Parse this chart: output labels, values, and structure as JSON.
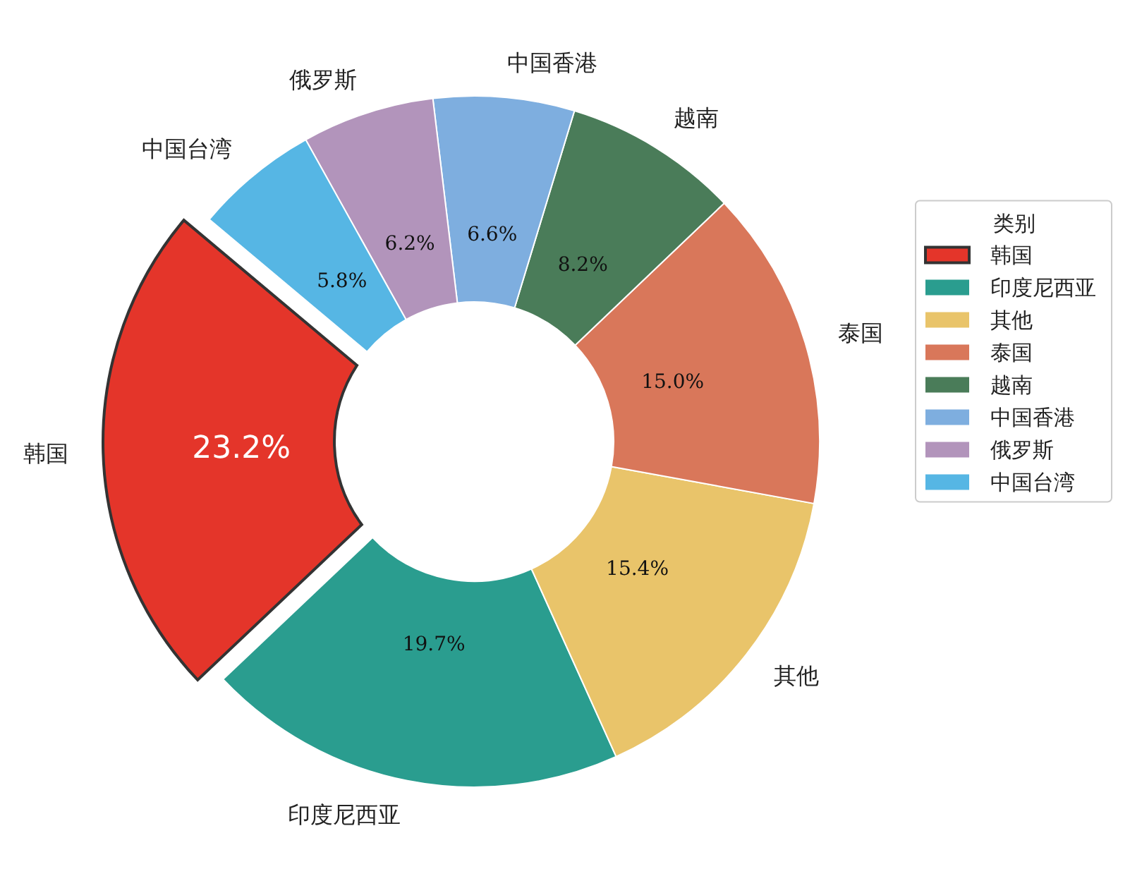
{
  "chart_data": {
    "type": "donut",
    "categories": [
      "韩国",
      "印度尼西亚",
      "其他",
      "泰国",
      "越南",
      "中国香港",
      "俄罗斯",
      "中国台湾"
    ],
    "values": [
      23.2,
      19.7,
      15.4,
      15.0,
      8.2,
      6.6,
      6.2,
      5.8
    ],
    "colors": [
      "#e4352a",
      "#2a9d8f",
      "#e9c46a",
      "#d9775a",
      "#4a7c59",
      "#7eaedf",
      "#b294bb",
      "#56b6e4"
    ],
    "value_labels": [
      "23.2%",
      "19.7%",
      "15.4%",
      "15.0%",
      "8.2%",
      "6.6%",
      "6.2%",
      "5.8%"
    ],
    "legend": "right",
    "legend_title": "类别"
  }
}
